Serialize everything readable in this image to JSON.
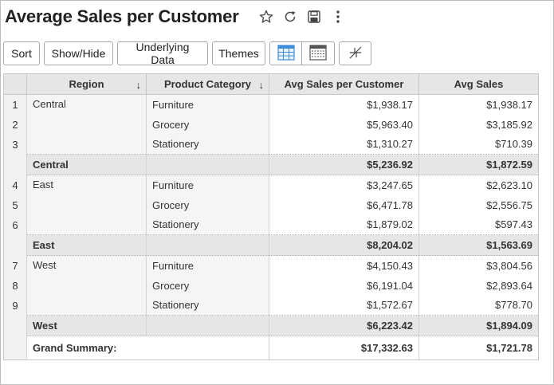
{
  "title": "Average Sales per Customer",
  "title_icons": [
    "star-icon",
    "refresh-icon",
    "save-icon",
    "more-icon"
  ],
  "toolbar": {
    "sort_label": "Sort",
    "showhide_label": "Show/Hide",
    "underlying_label": "Underlying Data",
    "themes_label": "Themes",
    "view_icons": [
      "table-view-icon",
      "summary-view-icon",
      "collapse-icon"
    ]
  },
  "table": {
    "headers": {
      "region": "Region",
      "category": "Product Category",
      "avg_customer": "Avg Sales per Customer",
      "avg_sales": "Avg Sales"
    },
    "groups": [
      {
        "region": "Central",
        "rows": [
          {
            "n": "1",
            "category": "Furniture",
            "avg_customer": "$1,938.17",
            "avg_sales": "$1,938.17"
          },
          {
            "n": "2",
            "category": "Grocery",
            "avg_customer": "$5,963.40",
            "avg_sales": "$3,185.92"
          },
          {
            "n": "3",
            "category": "Stationery",
            "avg_customer": "$1,310.27",
            "avg_sales": "$710.39"
          }
        ],
        "subtotal": {
          "label": "Central",
          "avg_customer": "$5,236.92",
          "avg_sales": "$1,872.59"
        }
      },
      {
        "region": "East",
        "rows": [
          {
            "n": "4",
            "category": "Furniture",
            "avg_customer": "$3,247.65",
            "avg_sales": "$2,623.10"
          },
          {
            "n": "5",
            "category": "Grocery",
            "avg_customer": "$6,471.78",
            "avg_sales": "$2,556.75"
          },
          {
            "n": "6",
            "category": "Stationery",
            "avg_customer": "$1,879.02",
            "avg_sales": "$597.43"
          }
        ],
        "subtotal": {
          "label": "East",
          "avg_customer": "$8,204.02",
          "avg_sales": "$1,563.69"
        }
      },
      {
        "region": "West",
        "rows": [
          {
            "n": "7",
            "category": "Furniture",
            "avg_customer": "$4,150.43",
            "avg_sales": "$3,804.56"
          },
          {
            "n": "8",
            "category": "Grocery",
            "avg_customer": "$6,191.04",
            "avg_sales": "$2,893.64"
          },
          {
            "n": "9",
            "category": "Stationery",
            "avg_customer": "$1,572.67",
            "avg_sales": "$778.70"
          }
        ],
        "subtotal": {
          "label": "West",
          "avg_customer": "$6,223.42",
          "avg_sales": "$1,894.09"
        }
      }
    ],
    "grand": {
      "label": "Grand Summary:",
      "avg_customer": "$17,332.63",
      "avg_sales": "$1,721.78"
    }
  }
}
